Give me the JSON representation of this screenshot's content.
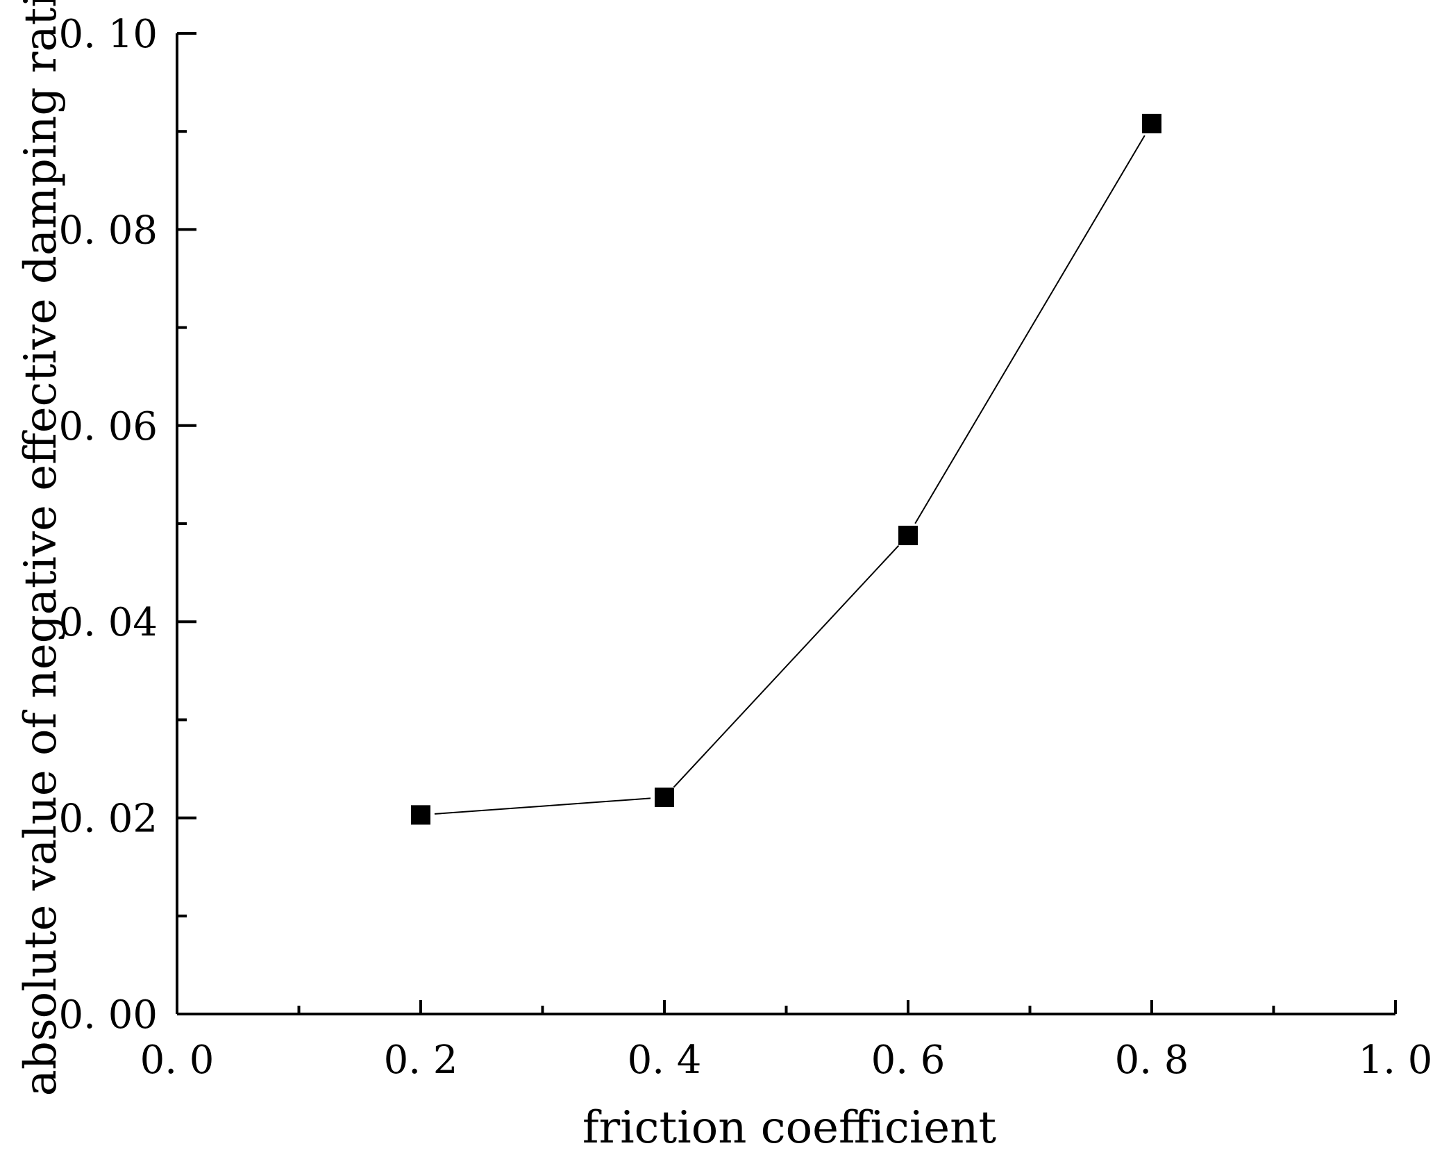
{
  "chart_data": {
    "type": "line",
    "title": "",
    "xlabel": "friction coefficient",
    "ylabel": "absolute value of negative effective damping ratio",
    "xlim": [
      0.0,
      1.0
    ],
    "ylim": [
      0.0,
      0.1
    ],
    "x_ticks": [
      "0. 0",
      "0. 2",
      "0. 4",
      "0. 6",
      "0. 8",
      "1. 0"
    ],
    "x_tick_values": [
      0.0,
      0.2,
      0.4,
      0.6,
      0.8,
      1.0
    ],
    "y_ticks": [
      "0. 00",
      "0. 02",
      "0. 04",
      "0. 06",
      "0. 08",
      "0. 10"
    ],
    "y_tick_values": [
      0.0,
      0.02,
      0.04,
      0.06,
      0.08,
      0.1
    ],
    "x_minor_tick_values": [
      0.1,
      0.3,
      0.5,
      0.7,
      0.9
    ],
    "y_minor_tick_values": [
      0.01,
      0.03,
      0.05,
      0.07,
      0.09
    ],
    "grid": false,
    "legend": "none",
    "series": [
      {
        "x": [
          0.2,
          0.4,
          0.6,
          0.8
        ],
        "values": [
          0.0203,
          0.0221,
          0.0488,
          0.0908
        ],
        "marker": "square",
        "color": "#000000"
      }
    ]
  }
}
